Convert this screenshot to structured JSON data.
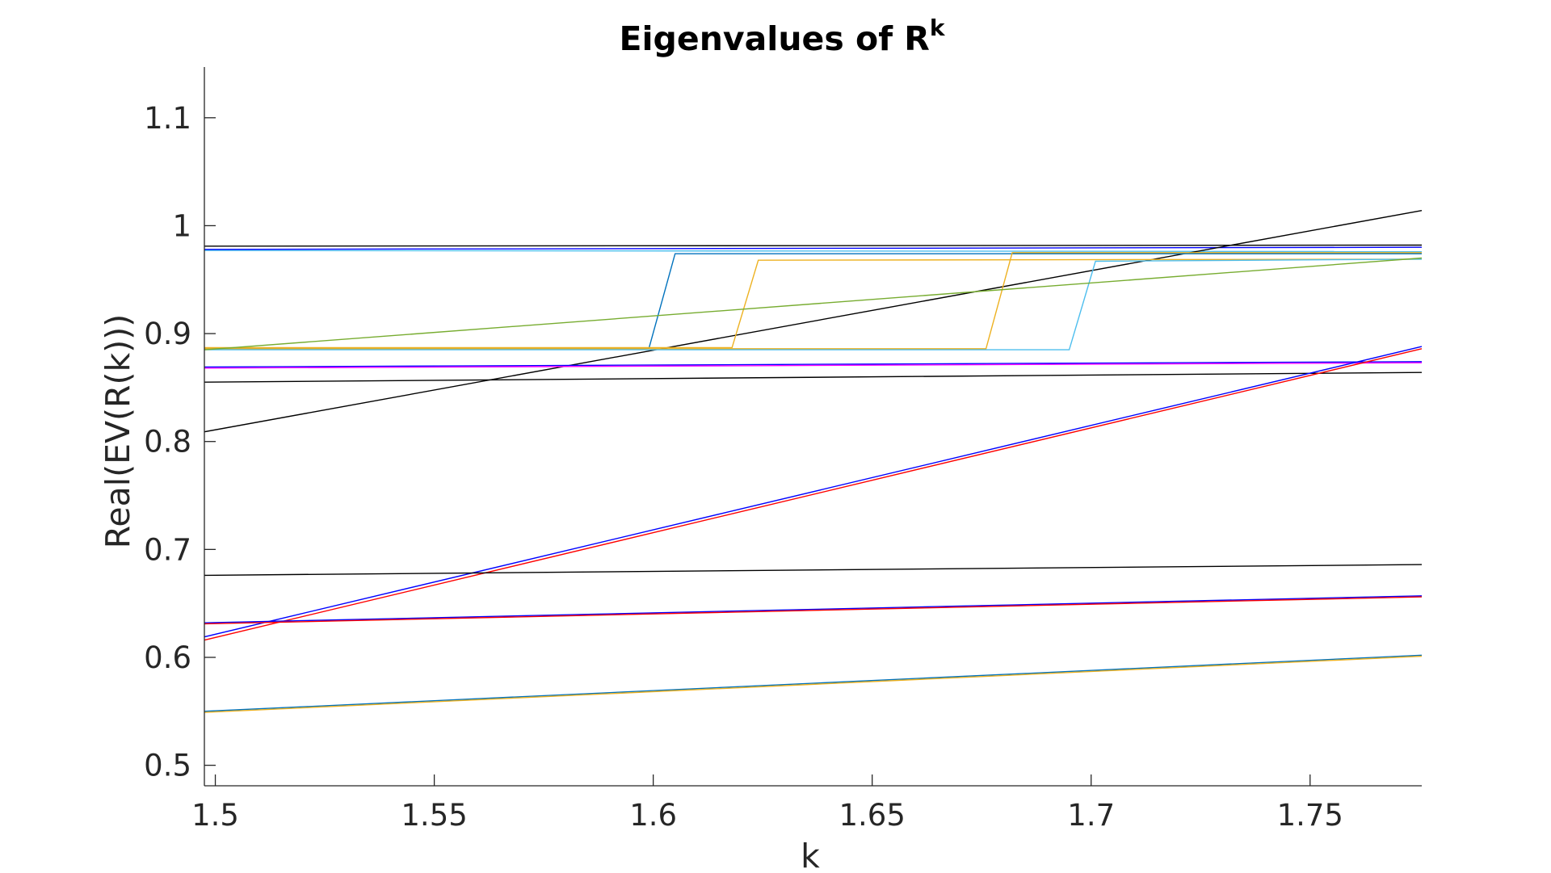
{
  "chart_data": {
    "type": "line",
    "title": "Eigenvalues of R",
    "title_superscript": "k",
    "xlabel": "k",
    "ylabel": "Real(EV(R(k)))",
    "xlim": [
      1.4975,
      1.7755
    ],
    "ylim": [
      0.481,
      1.147
    ],
    "xticks": [
      1.5,
      1.55,
      1.6,
      1.65,
      1.7,
      1.75
    ],
    "xtick_labels": [
      "1.5",
      "1.55",
      "1.6",
      "1.65",
      "1.7",
      "1.75"
    ],
    "yticks": [
      0.5,
      0.6,
      0.7,
      0.8,
      0.9,
      1.0,
      1.1
    ],
    "ytick_labels": [
      "0.5",
      "0.6",
      "0.7",
      "0.8",
      "0.9",
      "1",
      "1.1"
    ],
    "grid": false,
    "legend": "none",
    "colors": {
      "black": "#000000",
      "blue": "#0000ff",
      "red": "#ff0000",
      "magenta": "#ff00ff",
      "matlab_blue": "#0072bd",
      "matlab_orange": "#edb120",
      "matlab_green": "#77ac30",
      "matlab_cyan": "#4dbeee"
    },
    "series": [
      {
        "color": "#000000",
        "x": [
          1.4975,
          1.7755
        ],
        "y": [
          0.981,
          0.982
        ]
      },
      {
        "color": "#0000ff",
        "x": [
          1.4975,
          1.7755
        ],
        "y": [
          0.978,
          0.98
        ]
      },
      {
        "color": "#4dbeee",
        "x": [
          1.4975,
          1.7755
        ],
        "y": [
          0.977,
          0.976
        ]
      },
      {
        "color": "#000000",
        "x": [
          1.4975,
          1.7755
        ],
        "y": [
          0.809,
          1.014
        ]
      },
      {
        "color": "#0072bd",
        "x": [
          1.4975,
          1.599,
          1.605,
          1.7755
        ],
        "y": [
          0.886,
          0.886,
          0.974,
          0.974
        ]
      },
      {
        "color": "#edb120",
        "x": [
          1.4975,
          1.618,
          1.624,
          1.7755
        ],
        "y": [
          0.887,
          0.887,
          0.968,
          0.969
        ]
      },
      {
        "color": "#edb120",
        "x": [
          1.4975,
          1.676,
          1.682,
          1.7755
        ],
        "y": [
          0.886,
          0.886,
          0.975,
          0.975
        ]
      },
      {
        "color": "#4dbeee",
        "x": [
          1.4975,
          1.695,
          1.701,
          1.7755
        ],
        "y": [
          0.885,
          0.885,
          0.967,
          0.969
        ]
      },
      {
        "color": "#77ac30",
        "x": [
          1.4975,
          1.7755
        ],
        "y": [
          0.885,
          0.97
        ]
      },
      {
        "color": "#0000ff",
        "x": [
          1.4975,
          1.7755
        ],
        "y": [
          0.869,
          0.874
        ]
      },
      {
        "color": "#ff00ff",
        "x": [
          1.4975,
          1.7755
        ],
        "y": [
          0.868,
          0.873
        ]
      },
      {
        "color": "#000000",
        "x": [
          1.4975,
          1.7755
        ],
        "y": [
          0.855,
          0.864
        ]
      },
      {
        "color": "#0000ff",
        "x": [
          1.4975,
          1.7755
        ],
        "y": [
          0.619,
          0.888
        ]
      },
      {
        "color": "#ff0000",
        "x": [
          1.4975,
          1.7755
        ],
        "y": [
          0.616,
          0.886
        ]
      },
      {
        "color": "#000000",
        "x": [
          1.4975,
          1.7755
        ],
        "y": [
          0.676,
          0.686
        ]
      },
      {
        "color": "#0000ff",
        "x": [
          1.4975,
          1.7755
        ],
        "y": [
          0.632,
          0.657
        ]
      },
      {
        "color": "#ff0000",
        "x": [
          1.4975,
          1.7755
        ],
        "y": [
          0.631,
          0.656
        ]
      },
      {
        "color": "#0072bd",
        "x": [
          1.4975,
          1.7755
        ],
        "y": [
          0.55,
          0.602
        ]
      },
      {
        "color": "#edb120",
        "x": [
          1.4975,
          1.7755
        ],
        "y": [
          0.549,
          0.601
        ]
      }
    ]
  }
}
